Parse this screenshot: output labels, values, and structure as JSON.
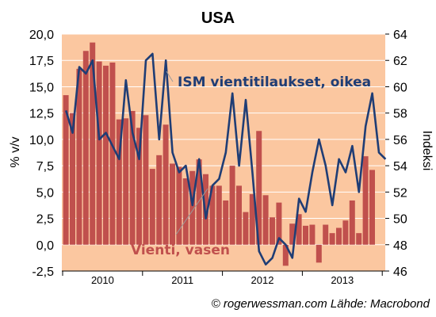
{
  "chart_data": {
    "type": "bar+line",
    "title": "USA",
    "source": "© rogerwessman.com Lähde: Macrobond",
    "left_axis": {
      "label": "% v/v",
      "range": [
        -2.5,
        20.0
      ],
      "ticks": [
        "-2,5",
        "0,0",
        "2,5",
        "5,0",
        "7,5",
        "10,0",
        "12,5",
        "15,0",
        "17,5",
        "20,0"
      ]
    },
    "right_axis": {
      "label": "Indeksi",
      "range": [
        46,
        64
      ],
      "ticks": [
        "46",
        "48",
        "50",
        "52",
        "54",
        "56",
        "58",
        "60",
        "62",
        "64"
      ]
    },
    "x_labels": [
      "2010",
      "2011",
      "2012",
      "2013"
    ],
    "colors": {
      "plot_bg": "#fbc7a0",
      "bars": "#c0504d",
      "line": "#1f3d75",
      "grid": "#ffffff"
    },
    "series": [
      {
        "name": "Vienti, vasen",
        "axis": "left",
        "kind": "bar",
        "values": [
          14.2,
          12.5,
          16.7,
          18.4,
          19.2,
          17.4,
          17.0,
          17.3,
          11.9,
          12.0,
          12.7,
          11.1,
          12.3,
          7.2,
          8.5,
          11.4,
          7.7,
          7.4,
          6.3,
          7.0,
          8.1,
          6.7,
          5.6,
          5.6,
          4.2,
          7.5,
          5.6,
          3.1,
          4.8,
          10.8,
          4.7,
          2.6,
          4.0,
          -2.0,
          2.0,
          2.9,
          1.8,
          1.9,
          -1.7,
          1.9,
          1.1,
          1.6,
          2.3,
          4.2,
          1.1,
          8.4,
          7.1
        ]
      },
      {
        "name": "ISM vientitilaukset, oikea",
        "axis": "right",
        "kind": "line",
        "values": [
          58.2,
          56.5,
          61.5,
          61.0,
          62.0,
          56.0,
          56.5,
          55.5,
          54.5,
          60.5,
          56.5,
          54.5,
          62.0,
          62.5,
          56.0,
          62.0,
          55.0,
          53.5,
          54.0,
          51.0,
          54.5,
          50.0,
          52.5,
          53.0,
          55.0,
          59.5,
          54.0,
          59.0,
          53.5,
          47.5,
          46.5,
          47.0,
          48.5,
          48.0,
          47.0,
          51.5,
          50.5,
          53.5,
          56.0,
          54.0,
          51.0,
          54.5,
          53.5,
          55.5,
          52.0,
          57.0,
          59.5,
          55.0,
          54.5
        ]
      }
    ]
  }
}
